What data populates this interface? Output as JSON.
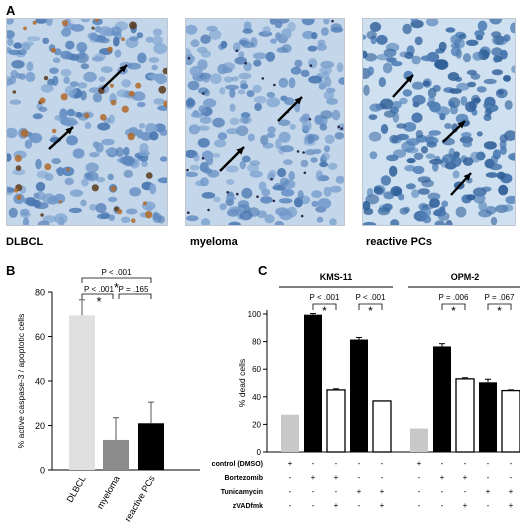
{
  "panels": {
    "a": {
      "letter": "A",
      "images": [
        {
          "label": "DLBCL"
        },
        {
          "label": "myeloma"
        },
        {
          "label": "reactive PCs"
        }
      ]
    },
    "b": {
      "letter": "B"
    },
    "c": {
      "letter": "C"
    }
  },
  "chart_data": [
    {
      "type": "bar",
      "ylabel": "% active caspase-3 / apoptotic cells",
      "categories": [
        "DLBCL",
        "myeloma",
        "reactive PCs"
      ],
      "values": [
        69.5,
        13.5,
        21
      ],
      "errors": [
        7,
        10,
        9.5
      ],
      "colors": [
        "#e0e0e0",
        "#8c8c8c",
        "#000000"
      ],
      "ylim": [
        0,
        80
      ],
      "yticks": [
        0,
        20,
        40,
        60,
        80
      ],
      "annotations": [
        {
          "text": "P < .001",
          "pair": [
            0,
            2
          ]
        },
        {
          "text": "P < .001",
          "pair": [
            0,
            1
          ]
        },
        {
          "text": "P = .165",
          "pair": [
            1,
            2
          ]
        },
        {
          "text": "*"
        }
      ]
    },
    {
      "type": "bar",
      "ylabel": "% dead cells",
      "ylim": [
        0,
        100
      ],
      "yticks": [
        0,
        20,
        40,
        60,
        80,
        100
      ],
      "groups": [
        {
          "name": "KMS-11",
          "bars": [
            {
              "value": 27,
              "error": 0,
              "color": "#c8c8c8"
            },
            {
              "value": 99.5,
              "error": 0.8,
              "color": "#000000"
            },
            {
              "value": 45,
              "error": 0.8,
              "color": "#ffffff"
            },
            {
              "value": 81.5,
              "error": 1.5,
              "color": "#000000"
            },
            {
              "value": 37,
              "error": 0,
              "color": "#ffffff"
            }
          ],
          "pvalues": [
            {
              "text": "P < .001",
              "pair": [
                1,
                2
              ]
            },
            {
              "text": "P < .001",
              "pair": [
                3,
                4
              ]
            }
          ]
        },
        {
          "name": "OPM-2",
          "bars": [
            {
              "value": 17,
              "error": 0,
              "color": "#c8c8c8"
            },
            {
              "value": 76.5,
              "error": 2,
              "color": "#000000"
            },
            {
              "value": 53,
              "error": 0.8,
              "color": "#ffffff"
            },
            {
              "value": 50.5,
              "error": 2.2,
              "color": "#000000"
            },
            {
              "value": 44.5,
              "error": 0.5,
              "color": "#ffffff"
            }
          ],
          "pvalues": [
            {
              "text": "P = .006",
              "pair": [
                1,
                2
              ]
            },
            {
              "text": "P = .067",
              "pair": [
                3,
                4
              ]
            }
          ]
        }
      ],
      "treatment_table": {
        "rows": [
          {
            "label": "control (DMSO)",
            "marks": [
              "+",
              "-",
              "-",
              "-",
              "-",
              "+",
              "-",
              "-",
              "-",
              "-"
            ]
          },
          {
            "label": "Bortezomib",
            "marks": [
              "-",
              "+",
              "+",
              "-",
              "-",
              "-",
              "+",
              "+",
              "-",
              "-"
            ]
          },
          {
            "label": "Tunicamycin",
            "marks": [
              "-",
              "-",
              "-",
              "+",
              "+",
              "-",
              "-",
              "-",
              "+",
              "+"
            ]
          },
          {
            "label": "zVADfmk",
            "marks": [
              "-",
              "-",
              "+",
              "-",
              "+",
              "-",
              "-",
              "+",
              "-",
              "+"
            ]
          }
        ]
      },
      "star": "*"
    }
  ]
}
